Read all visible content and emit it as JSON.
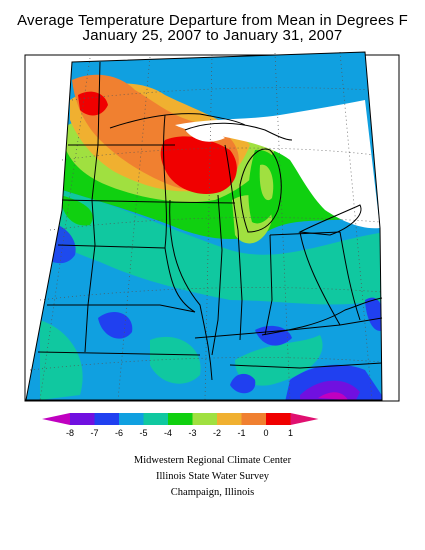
{
  "title_line1": "Average Temperature Departure from Mean in Degrees F",
  "title_line2": "January 25, 2007 to January 31, 2007",
  "legend": {
    "colors": [
      "#c000c0",
      "#7010e0",
      "#2040f0",
      "#10a0e0",
      "#10c8a0",
      "#10d010",
      "#a0e040",
      "#f0b030",
      "#f08030",
      "#f00000",
      "#e01070"
    ],
    "ticks": [
      "-8",
      "-7",
      "-6",
      "-5",
      "-4",
      "-3",
      "-2",
      "-1",
      "0",
      "1"
    ]
  },
  "credits": [
    "Midwestern Regional Climate Center",
    "Illinois State Water Survey",
    "Champaign, Illinois"
  ]
}
